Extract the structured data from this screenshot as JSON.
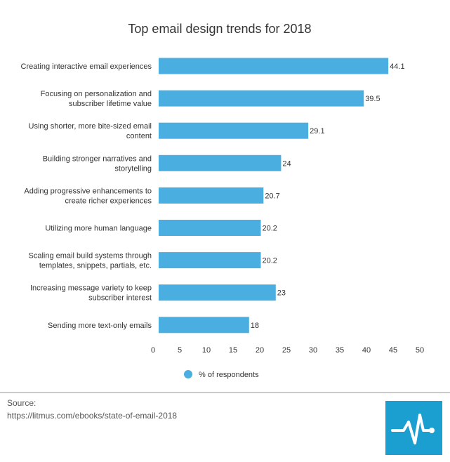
{
  "chart_data": {
    "type": "bar",
    "orientation": "horizontal",
    "title": "Top email design trends for 2018",
    "categories": [
      [
        "Creating interactive email experiences"
      ],
      [
        "Focusing on personalization and",
        "subscriber lifetime value"
      ],
      [
        "Using shorter, more bite-sized email",
        "content"
      ],
      [
        "Building stronger narratives and",
        "storytelling"
      ],
      [
        "Adding progressive enhancements to",
        "create richer experiences"
      ],
      [
        "Utilizing more human language"
      ],
      [
        "Scaling email build systems through",
        "templates, snippets, partials, etc."
      ],
      [
        "Increasing message variety to keep",
        "subscriber interest"
      ],
      [
        "Sending more text-only emails"
      ]
    ],
    "series": [
      {
        "name": "% of respondents",
        "values": [
          44.1,
          39.5,
          29.1,
          24,
          20.7,
          20.2,
          20.2,
          23,
          18
        ],
        "color": "#4aaee0"
      }
    ],
    "value_labels": [
      "44.1",
      "39.5",
      "29.1",
      "24",
      "20.7",
      "20.2",
      "20.2",
      "23",
      "18"
    ],
    "xlim": [
      0,
      50
    ],
    "xticks": [
      0,
      5,
      10,
      15,
      20,
      25,
      30,
      35,
      40,
      45,
      50
    ],
    "grid": false,
    "legend_position": "bottom"
  },
  "footer": {
    "source_label": "Source:",
    "source_url": "https://litmus.com/ebooks/state-of-email-2018"
  },
  "logo": {
    "icon": "pulse-line-icon",
    "color": "#1a9fd0"
  }
}
